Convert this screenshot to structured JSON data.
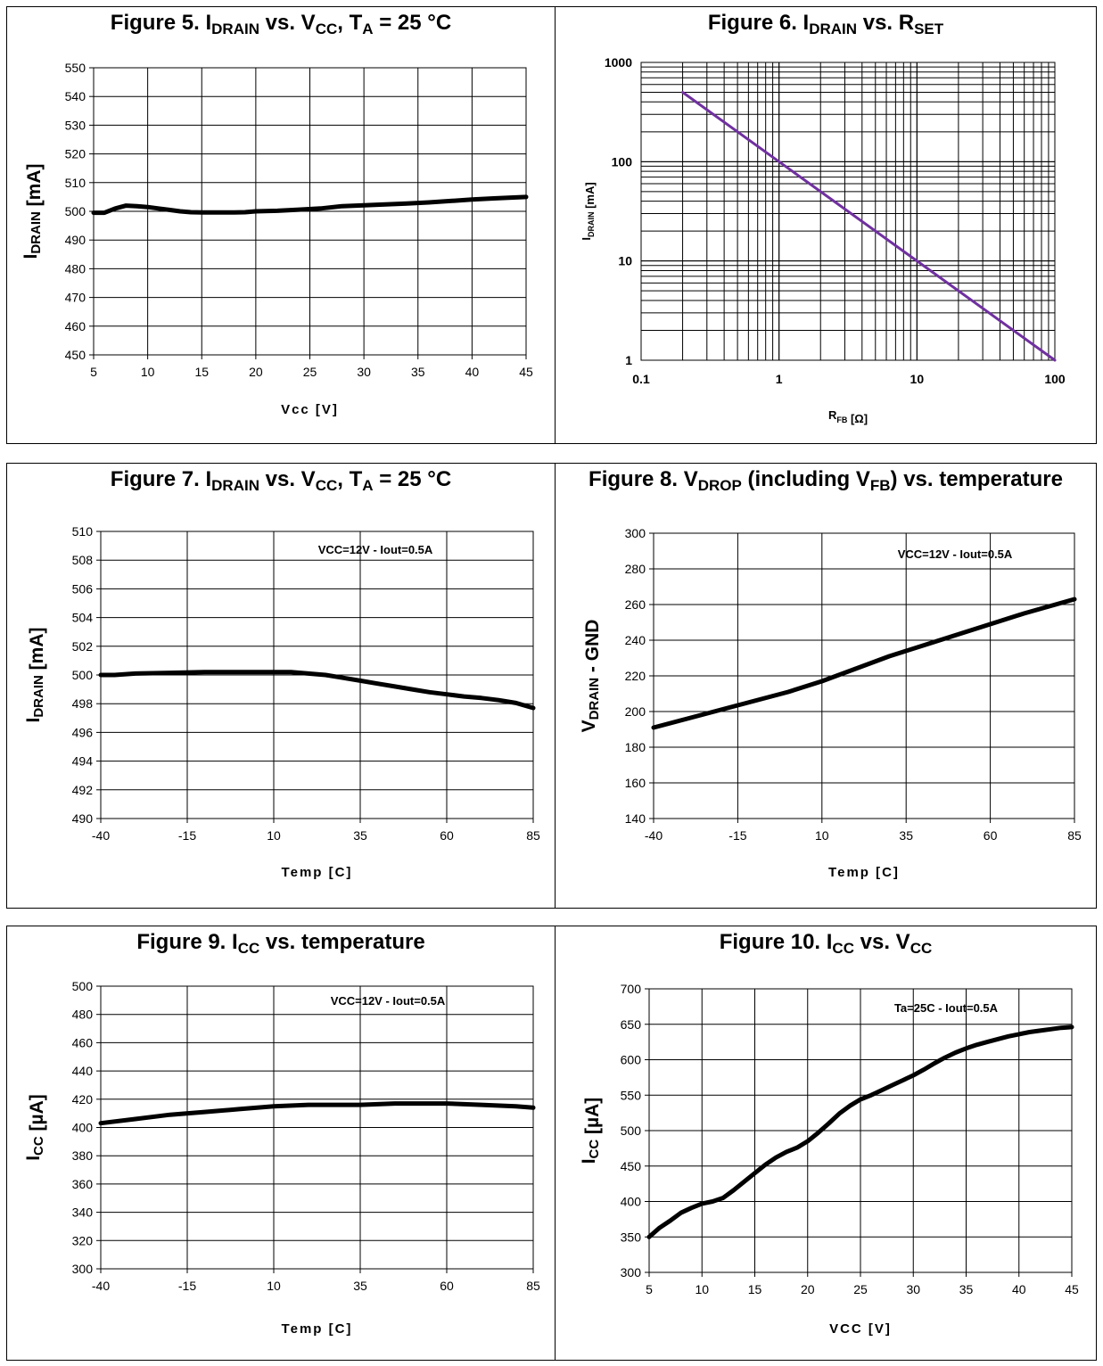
{
  "chart_data": [
    {
      "id": "fig5",
      "type": "line",
      "title": "Figure 5. IDRAIN vs. VCC, TA = 25 °C",
      "title_parts": [
        [
          "Figure 5. I",
          ""
        ],
        [
          "DRAIN",
          "sub"
        ],
        [
          " vs. V",
          ""
        ],
        [
          "CC",
          "sub"
        ],
        [
          ", T",
          ""
        ],
        [
          "A",
          "sub"
        ],
        [
          " = 25 °C",
          ""
        ]
      ],
      "xlabel": "Vcc [V]",
      "ylabel_parts": [
        [
          "I",
          ""
        ],
        [
          "DRAIN",
          "sub"
        ],
        [
          " [mA]",
          ""
        ]
      ],
      "xlim": [
        5,
        45
      ],
      "ylim": [
        450,
        550
      ],
      "xticks": [
        5,
        10,
        15,
        20,
        25,
        30,
        35,
        40,
        45
      ],
      "yticks": [
        450,
        460,
        470,
        480,
        490,
        500,
        510,
        520,
        530,
        540,
        550
      ],
      "series": [
        {
          "x": [
            5,
            6,
            7,
            8,
            9,
            10,
            11,
            12,
            13,
            14,
            15,
            16,
            17,
            18,
            19,
            20,
            22,
            24,
            26,
            28,
            30,
            32,
            34,
            36,
            38,
            40,
            42,
            45
          ],
          "y": [
            499.5,
            499.5,
            501,
            502,
            501.8,
            501.5,
            501,
            500.5,
            500,
            499.7,
            499.6,
            499.6,
            499.6,
            499.6,
            499.7,
            500,
            500.2,
            500.6,
            501,
            501.8,
            502.1,
            502.4,
            502.7,
            503.1,
            503.6,
            504.1,
            504.5,
            505
          ]
        }
      ],
      "color": "#000000"
    },
    {
      "id": "fig6",
      "type": "line",
      "title": "Figure 6. IDRAIN vs. RSET",
      "title_parts": [
        [
          "Figure 6. I",
          ""
        ],
        [
          "DRAIN",
          "sub"
        ],
        [
          " vs. R",
          ""
        ],
        [
          "SET",
          "sub"
        ]
      ],
      "xlabel_parts": [
        [
          "R",
          ""
        ],
        [
          "FB",
          "sub"
        ],
        [
          " [Ω]",
          ""
        ]
      ],
      "ylabel_parts": [
        [
          "I",
          ""
        ],
        [
          "DRAIN",
          "sub"
        ],
        [
          " [mA]",
          ""
        ]
      ],
      "xscale": "log",
      "yscale": "log",
      "xlim": [
        0.1,
        100
      ],
      "ylim": [
        1,
        1000
      ],
      "xticks": [
        0.1,
        1,
        10,
        100
      ],
      "xtick_labels": [
        "0.1",
        "1",
        "10",
        "100"
      ],
      "yticks": [
        1,
        10,
        100,
        1000
      ],
      "ytick_labels": [
        "1",
        "10",
        "100",
        "1000"
      ],
      "series": [
        {
          "x": [
            0.2,
            100
          ],
          "y": [
            500,
            1
          ]
        }
      ],
      "color": "#7030a0"
    },
    {
      "id": "fig7",
      "type": "line",
      "title": "Figure 7. IDRAIN vs. VCC, TA = 25 °C",
      "title_parts": [
        [
          "Figure 7. I",
          ""
        ],
        [
          "DRAIN",
          "sub"
        ],
        [
          " vs. V",
          ""
        ],
        [
          "CC",
          "sub"
        ],
        [
          ", T",
          ""
        ],
        [
          "A",
          "sub"
        ],
        [
          " = 25 °C",
          ""
        ]
      ],
      "xlabel": "Temp [C]",
      "ylabel_parts": [
        [
          "I",
          ""
        ],
        [
          "DRAIN",
          "sub"
        ],
        [
          " [mA]",
          ""
        ]
      ],
      "annotation": "VCC=12V - Iout=0.5A",
      "xlim": [
        -40,
        85
      ],
      "ylim": [
        490,
        510
      ],
      "xticks": [
        -40,
        -15,
        10,
        35,
        60,
        85
      ],
      "yticks": [
        490,
        492,
        494,
        496,
        498,
        500,
        502,
        504,
        506,
        508,
        510
      ],
      "series": [
        {
          "x": [
            -40,
            -36,
            -30,
            -20,
            -10,
            0,
            10,
            15,
            20,
            25,
            30,
            35,
            40,
            45,
            50,
            55,
            60,
            65,
            70,
            75,
            80,
            85
          ],
          "y": [
            500,
            500,
            500.1,
            500.15,
            500.2,
            500.2,
            500.2,
            500.2,
            500.1,
            500,
            499.8,
            499.6,
            499.4,
            499.2,
            499.0,
            498.8,
            498.65,
            498.5,
            498.4,
            498.25,
            498.05,
            497.7
          ]
        }
      ],
      "color": "#000000"
    },
    {
      "id": "fig8",
      "type": "line",
      "title": "Figure 8. VDROP (including VFB) vs. temperature",
      "title_parts": [
        [
          "Figure 8. V",
          ""
        ],
        [
          "DROP",
          "sub"
        ],
        [
          " (including V",
          ""
        ],
        [
          "FB",
          "sub"
        ],
        [
          ") vs. temperature",
          ""
        ]
      ],
      "xlabel": "Temp [C]",
      "ylabel_parts": [
        [
          "V",
          ""
        ],
        [
          "DRAIN",
          "sub"
        ],
        [
          " - GND",
          ""
        ]
      ],
      "annotation": "VCC=12V - Iout=0.5A",
      "xlim": [
        -40,
        85
      ],
      "ylim": [
        140,
        300
      ],
      "xticks": [
        -40,
        -15,
        10,
        35,
        60,
        85
      ],
      "yticks": [
        140,
        160,
        180,
        200,
        220,
        240,
        260,
        280,
        300
      ],
      "series": [
        {
          "x": [
            -40,
            -30,
            -20,
            -10,
            0,
            10,
            20,
            30,
            40,
            50,
            60,
            70,
            85
          ],
          "y": [
            191,
            196,
            201,
            206,
            211,
            217,
            224,
            231,
            237,
            243,
            249,
            255,
            263
          ]
        }
      ],
      "color": "#000000"
    },
    {
      "id": "fig9",
      "type": "line",
      "title": "Figure 9. ICC vs. temperature",
      "title_parts": [
        [
          "Figure 9. I",
          ""
        ],
        [
          "CC",
          "sub"
        ],
        [
          " vs. temperature",
          ""
        ]
      ],
      "xlabel": "Temp [C]",
      "ylabel_parts": [
        [
          "I",
          ""
        ],
        [
          "CC",
          "sub"
        ],
        [
          " [µA]",
          ""
        ]
      ],
      "annotation": "VCC=12V - Iout=0.5A",
      "xlim": [
        -40,
        85
      ],
      "ylim": [
        300,
        500
      ],
      "xticks": [
        -40,
        -15,
        10,
        35,
        60,
        85
      ],
      "yticks": [
        300,
        320,
        340,
        360,
        380,
        400,
        420,
        440,
        460,
        480,
        500
      ],
      "series": [
        {
          "x": [
            -40,
            -30,
            -20,
            -10,
            0,
            10,
            20,
            35,
            45,
            60,
            70,
            80,
            85
          ],
          "y": [
            403,
            406,
            409,
            411,
            413,
            415,
            416,
            416,
            417,
            417,
            416,
            415,
            414
          ]
        }
      ],
      "color": "#000000"
    },
    {
      "id": "fig10",
      "type": "line",
      "title": "Figure 10. ICC vs. VCC",
      "title_parts": [
        [
          "Figure 10. I",
          ""
        ],
        [
          "CC",
          "sub"
        ],
        [
          " vs. V",
          ""
        ],
        [
          "CC",
          "sub"
        ]
      ],
      "xlabel": "VCC [V]",
      "ylabel_parts": [
        [
          "I",
          ""
        ],
        [
          "CC",
          "sub"
        ],
        [
          " [µA]",
          ""
        ]
      ],
      "annotation": "Ta=25C - Iout=0.5A",
      "xlim": [
        5,
        45
      ],
      "ylim": [
        300,
        700
      ],
      "xticks": [
        5,
        10,
        15,
        20,
        25,
        30,
        35,
        40,
        45
      ],
      "yticks": [
        300,
        350,
        400,
        450,
        500,
        550,
        600,
        650,
        700
      ],
      "series": [
        {
          "x": [
            5,
            6,
            7,
            8,
            9,
            10,
            11,
            12,
            13,
            14,
            15,
            16,
            17,
            18,
            19,
            20,
            21,
            22,
            23,
            24,
            25,
            26,
            27,
            28,
            29,
            30,
            31,
            32,
            33,
            34,
            35,
            36,
            37,
            38,
            39,
            40,
            41,
            42,
            43,
            44,
            45
          ],
          "y": [
            350,
            363,
            373,
            384,
            391,
            397,
            400,
            405,
            416,
            428,
            440,
            452,
            462,
            470,
            476,
            485,
            497,
            510,
            524,
            535,
            544,
            550,
            557,
            564,
            571,
            578,
            586,
            595,
            603,
            610,
            616,
            621,
            625,
            629,
            633,
            636,
            639,
            641,
            643,
            645,
            646
          ]
        }
      ],
      "color": "#000000"
    }
  ]
}
